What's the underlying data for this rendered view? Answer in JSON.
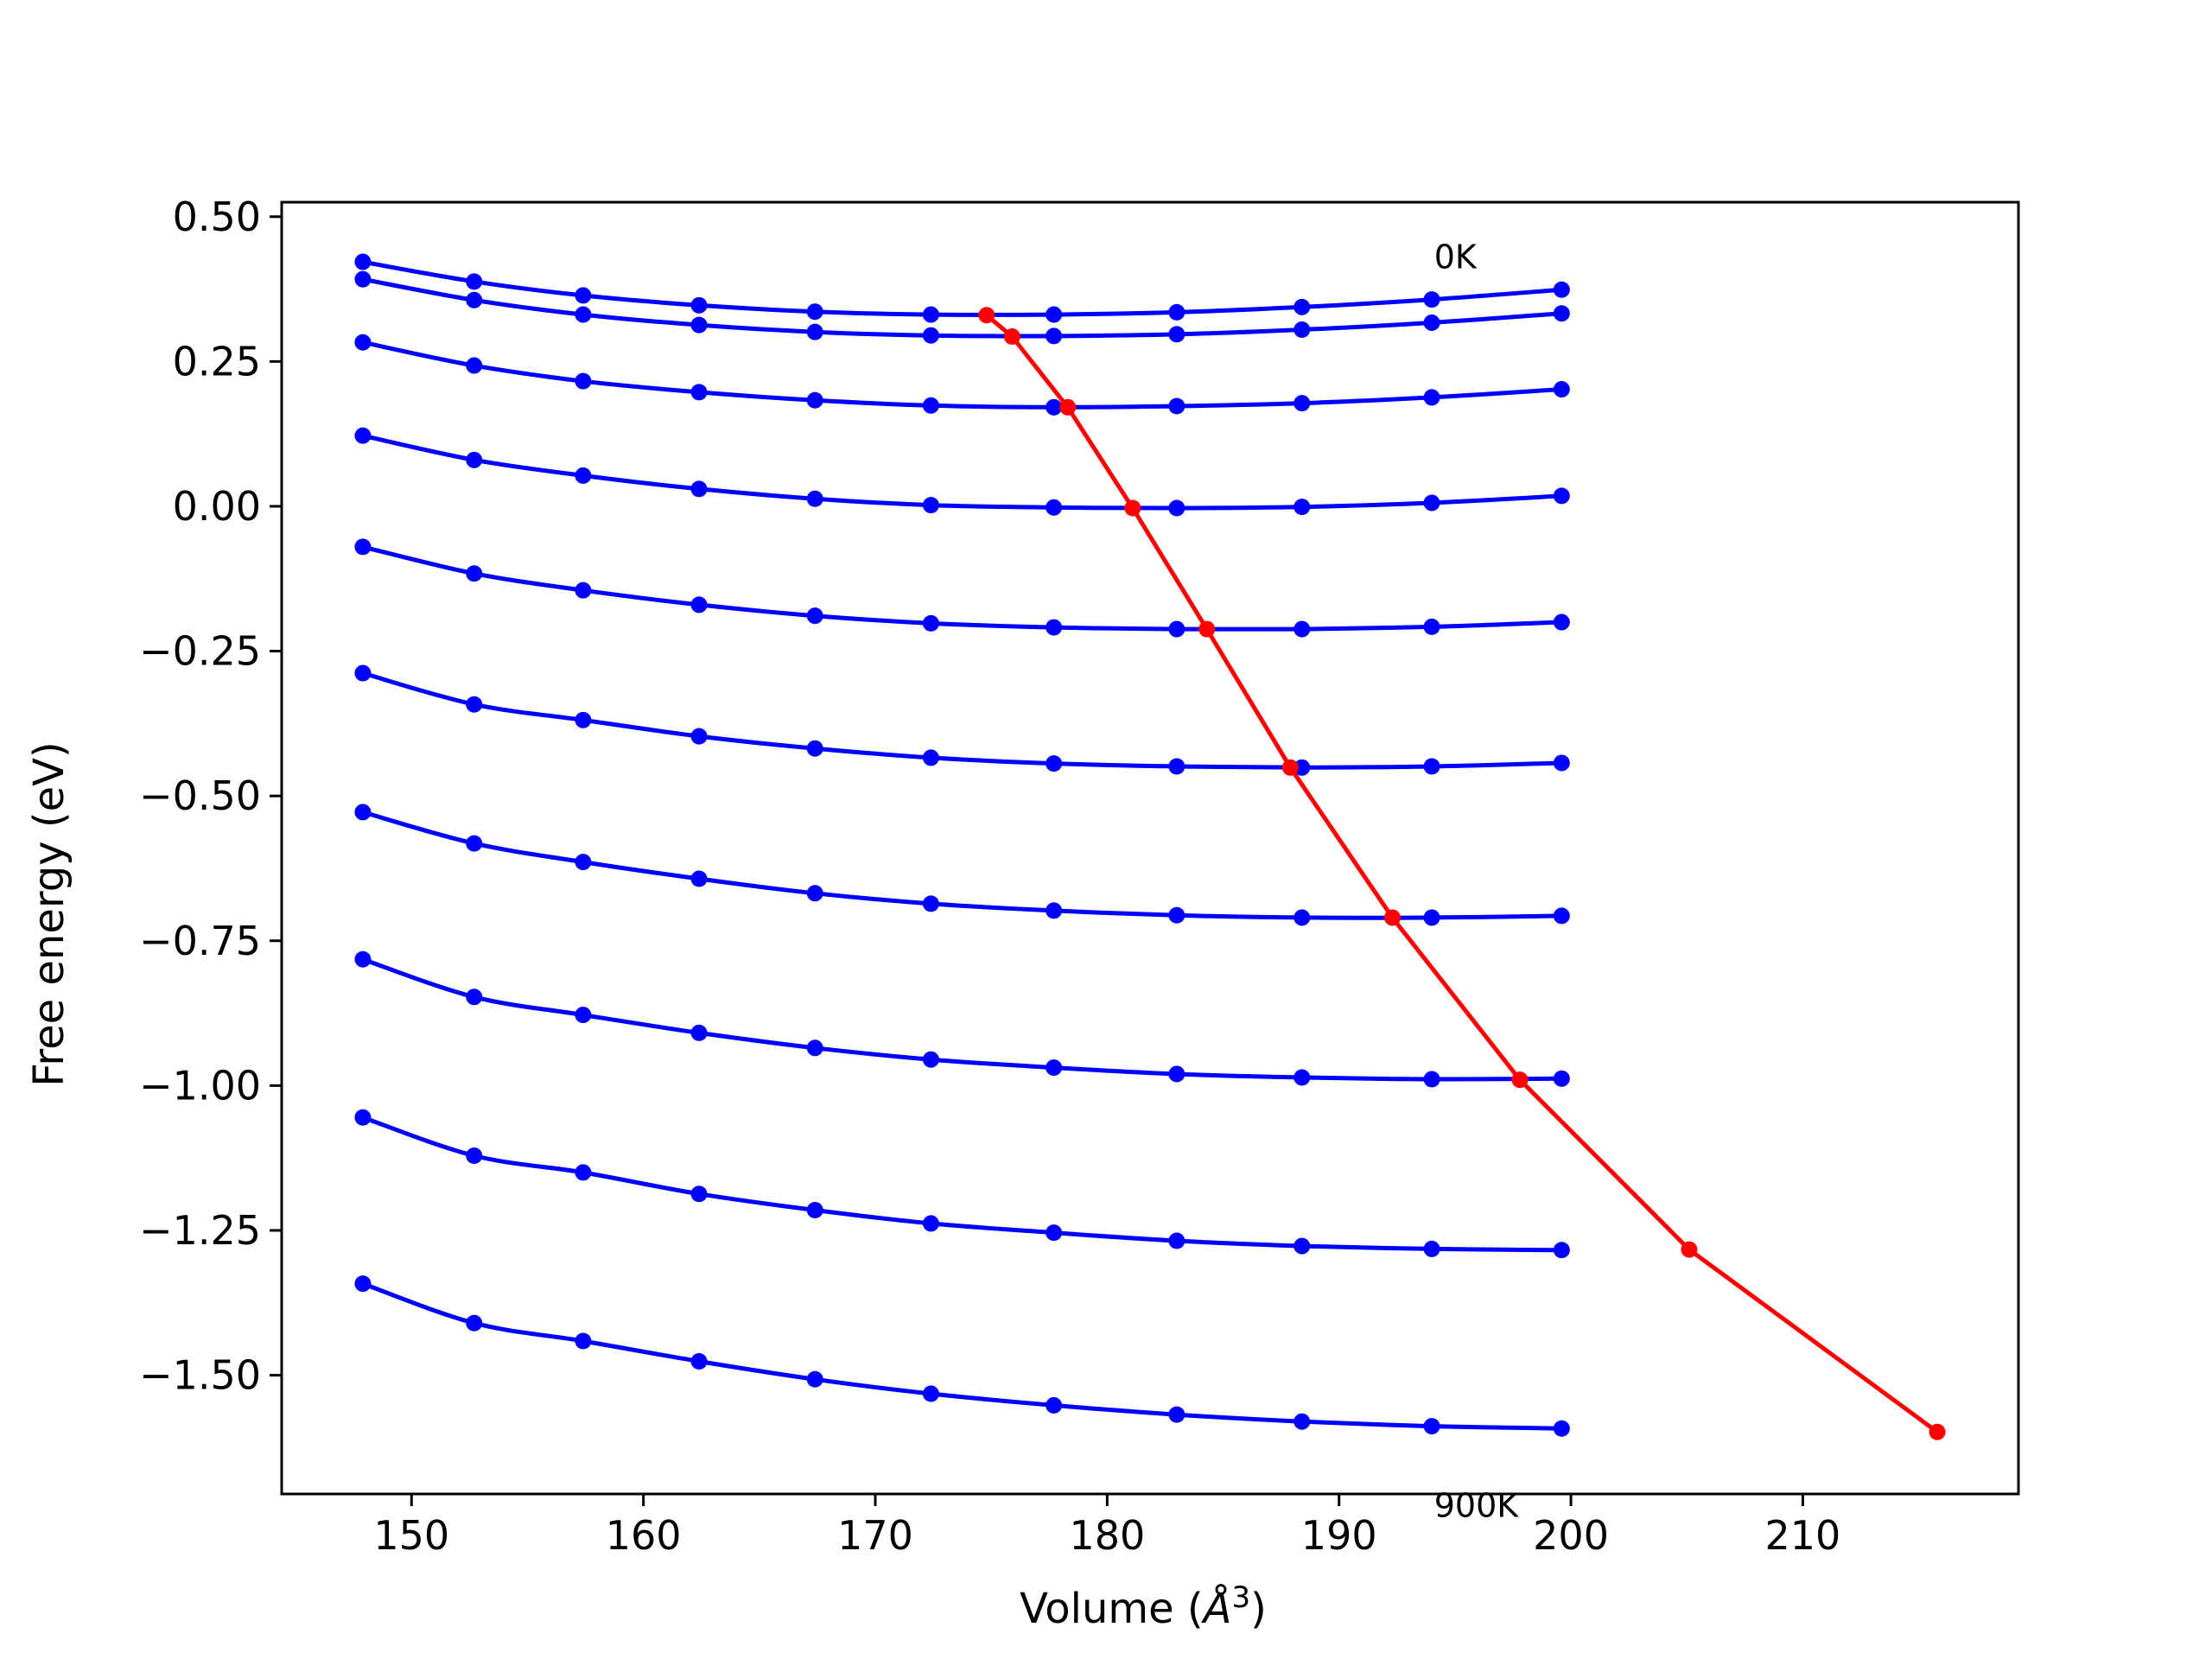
{
  "chart_data": {
    "type": "line",
    "title": "",
    "xlabel": "Volume ($Å^3$)",
    "xlabel_main": "Volume (",
    "xlabel_unit": "Å",
    "xlabel_exp": "3",
    "xlabel_close": ")",
    "ylabel": "Free energy (eV)",
    "xlim": [
      144.4,
      219.3
    ],
    "ylim": [
      -1.705,
      0.525
    ],
    "xticks": [
      150,
      160,
      170,
      180,
      190,
      200,
      210
    ],
    "xtick_labels": [
      "150",
      "160",
      "170",
      "180",
      "190",
      "200",
      "210"
    ],
    "yticks": [
      0.5,
      0.25,
      0.0,
      -0.25,
      -0.5,
      -0.75,
      -1.0,
      -1.25,
      -1.5
    ],
    "ytick_labels": [
      "0.50",
      "0.25",
      "0.00",
      "−0.25",
      "−0.50",
      "−0.75",
      "−1.00",
      "−1.25",
      "−1.50"
    ],
    "grid": false,
    "annotations": [
      {
        "text": "0K",
        "x": 194.1,
        "y": 0.43
      },
      {
        "text": "900K",
        "x": 194.1,
        "y": -1.725
      }
    ],
    "x": [
      147.9,
      152.7,
      157.4,
      162.4,
      167.4,
      172.4,
      177.7,
      183.0,
      188.4,
      194.0,
      199.6
    ],
    "series": [
      {
        "color": "#0000ff",
        "values": [
          0.422,
          0.388,
          0.364,
          0.347,
          0.336,
          0.331,
          0.331,
          0.335,
          0.344,
          0.357,
          0.374
        ]
      },
      {
        "color": "#0000ff",
        "values": [
          0.392,
          0.356,
          0.331,
          0.313,
          0.301,
          0.295,
          0.294,
          0.297,
          0.305,
          0.317,
          0.333
        ]
      },
      {
        "color": "#0000ff",
        "values": [
          0.283,
          0.243,
          0.216,
          0.197,
          0.183,
          0.174,
          0.171,
          0.173,
          0.178,
          0.188,
          0.202
        ]
      },
      {
        "color": "#0000ff",
        "values": [
          0.122,
          0.08,
          0.053,
          0.03,
          0.013,
          0.002,
          -0.002,
          -0.003,
          -0.001,
          0.006,
          0.018
        ]
      },
      {
        "color": "#0000ff",
        "values": [
          -0.07,
          -0.116,
          -0.145,
          -0.17,
          -0.189,
          -0.202,
          -0.209,
          -0.212,
          -0.212,
          -0.208,
          -0.2
        ]
      },
      {
        "color": "#0000ff",
        "values": [
          -0.288,
          -0.342,
          -0.369,
          -0.397,
          -0.418,
          -0.434,
          -0.444,
          -0.449,
          -0.451,
          -0.449,
          -0.443
        ]
      },
      {
        "color": "#0000ff",
        "values": [
          -0.528,
          -0.582,
          -0.614,
          -0.643,
          -0.668,
          -0.686,
          -0.698,
          -0.706,
          -0.71,
          -0.71,
          -0.707
        ]
      },
      {
        "color": "#0000ff",
        "values": [
          -0.782,
          -0.847,
          -0.878,
          -0.909,
          -0.935,
          -0.955,
          -0.969,
          -0.98,
          -0.986,
          -0.989,
          -0.988
        ]
      },
      {
        "color": "#0000ff",
        "values": [
          -1.055,
          -1.121,
          -1.15,
          -1.187,
          -1.215,
          -1.238,
          -1.254,
          -1.268,
          -1.277,
          -1.282,
          -1.284
        ]
      },
      {
        "color": "#0000ff",
        "values": [
          -1.342,
          -1.41,
          -1.441,
          -1.476,
          -1.507,
          -1.532,
          -1.552,
          -1.568,
          -1.58,
          -1.588,
          -1.592
        ]
      }
    ],
    "minimum_curve": {
      "color": "#ff0000",
      "x": [
        174.8,
        175.9,
        178.3,
        181.1,
        184.3,
        187.9,
        192.3,
        197.8,
        205.1,
        215.8
      ],
      "y": [
        0.33,
        0.293,
        0.171,
        -0.003,
        -0.212,
        -0.451,
        -0.71,
        -0.99,
        -1.283,
        -1.598
      ]
    }
  }
}
